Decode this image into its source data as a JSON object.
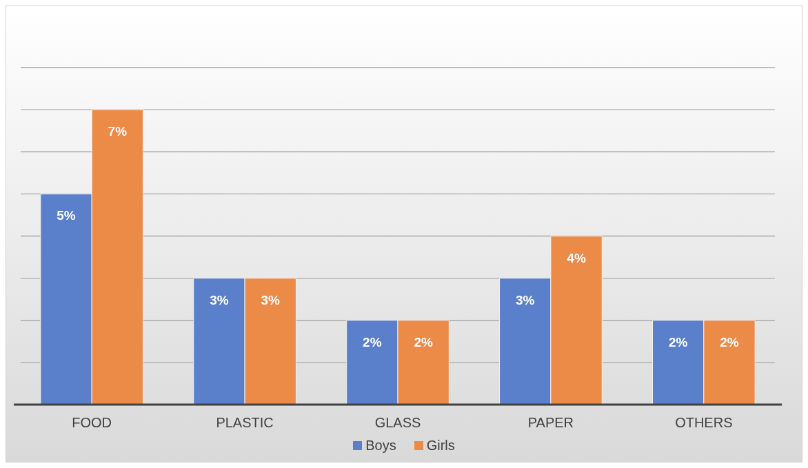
{
  "chart_data": {
    "type": "bar",
    "categories": [
      "FOOD",
      "PLASTIC",
      "GLASS",
      "PAPER",
      "OTHERS"
    ],
    "series": [
      {
        "name": "Boys",
        "color": "#5a7fcb",
        "values": [
          5,
          3,
          2,
          3,
          2
        ],
        "value_labels": [
          "5%",
          "3%",
          "2%",
          "3%",
          "2%"
        ]
      },
      {
        "name": "Girls",
        "color": "#ec8a48",
        "values": [
          7,
          3,
          2,
          4,
          2
        ],
        "value_labels": [
          "7%",
          "3%",
          "2%",
          "4%",
          "2%"
        ]
      }
    ],
    "ylim": [
      0,
      8
    ],
    "yticks": [
      {
        "value": 0,
        "label": null
      },
      {
        "value": 1,
        "label": null
      },
      {
        "value": 2,
        "label": null
      },
      {
        "value": 3,
        "label": null
      },
      {
        "value": 4,
        "label": null
      },
      {
        "value": 5,
        "label": null
      },
      {
        "value": 6,
        "label": null
      },
      {
        "value": 7,
        "label": null
      },
      {
        "value": 8,
        "label": null
      }
    ],
    "tick_labels": "x",
    "grid": "y",
    "legend": "bottom"
  }
}
